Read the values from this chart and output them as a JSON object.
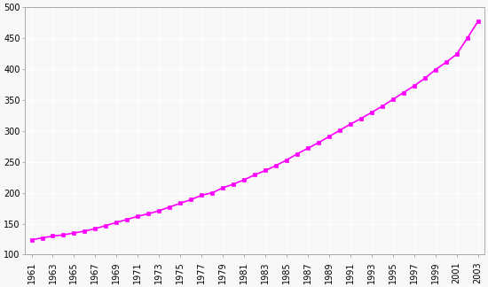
{
  "years": [
    1961,
    1962,
    1963,
    1964,
    1965,
    1966,
    1967,
    1968,
    1969,
    1970,
    1971,
    1972,
    1973,
    1974,
    1975,
    1976,
    1977,
    1978,
    1979,
    1980,
    1981,
    1982,
    1983,
    1984,
    1985,
    1986,
    1987,
    1988,
    1989,
    1990,
    1991,
    1992,
    1993,
    1994,
    1995,
    1996,
    1997,
    1998,
    1999,
    2000,
    2001,
    2002,
    2003
  ],
  "population": [
    124,
    127,
    130,
    132,
    135,
    138,
    142,
    147,
    152,
    157,
    162,
    166,
    171,
    177,
    183,
    189,
    196,
    200,
    208,
    214,
    221,
    229,
    236,
    244,
    253,
    263,
    272,
    281,
    291,
    301,
    311,
    320,
    330,
    340,
    351,
    362,
    373,
    385,
    399,
    411,
    424,
    450,
    477
  ],
  "xtick_years": [
    1961,
    1963,
    1965,
    1967,
    1969,
    1971,
    1973,
    1975,
    1977,
    1979,
    1981,
    1983,
    1985,
    1987,
    1989,
    1991,
    1993,
    1995,
    1997,
    1999,
    2001,
    2003
  ],
  "line_color": "#ff00ff",
  "marker_color": "#ff00ff",
  "marker_style": "s",
  "marker_size": 3.5,
  "line_width": 1.2,
  "ylim": [
    100,
    500
  ],
  "yticks": [
    100,
    150,
    200,
    250,
    300,
    350,
    400,
    450,
    500
  ],
  "plot_bg_color": "#f8f8f8",
  "fig_bg_color": "#f8f8f8",
  "grid_color": "#ffffff",
  "axis_color": "#aaaaaa",
  "tick_label_fontsize": 7.0,
  "xlim_left": 1960.4,
  "xlim_right": 2003.6
}
